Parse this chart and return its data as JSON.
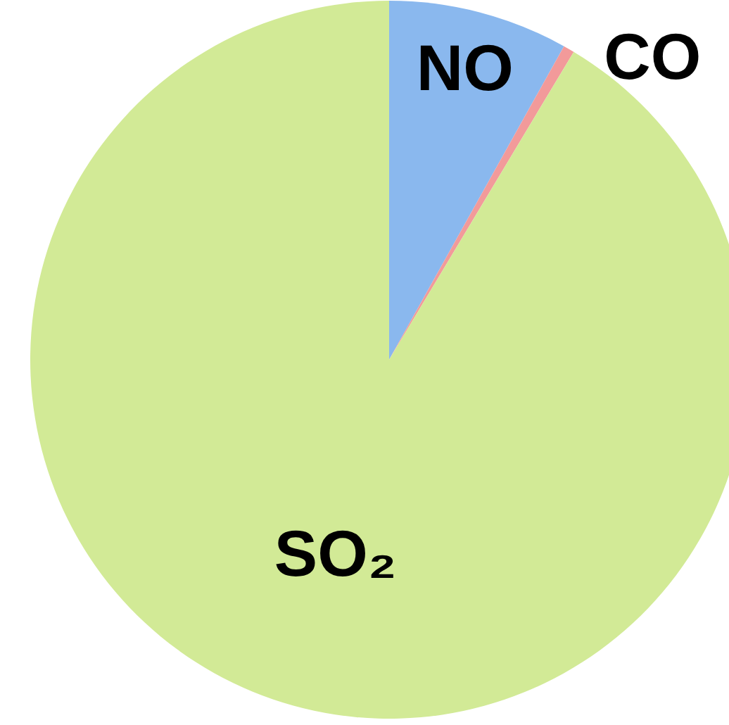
{
  "chart_data": {
    "type": "pie",
    "categories": [
      "NO",
      "CO",
      "SO₂"
    ],
    "values": [
      8.1,
      0.5,
      91.4
    ],
    "colors": [
      "#8ab8ee",
      "#f29a9a",
      "#d2ea96"
    ]
  }
}
